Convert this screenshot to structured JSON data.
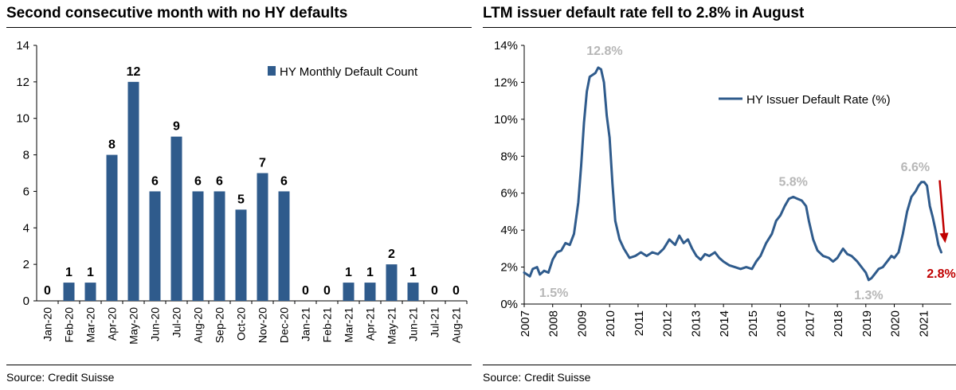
{
  "colors": {
    "series": "#2f5b8c",
    "annotation": "#b7b7b7",
    "highlight": "#c00000"
  },
  "left": {
    "title": "Second consecutive month with no HY defaults",
    "source": "Source: Credit Suisse",
    "chart_data": {
      "type": "bar",
      "categories": [
        "Jan-20",
        "Feb-20",
        "Mar-20",
        "Apr-20",
        "May-20",
        "Jun-20",
        "Jul-20",
        "Aug-20",
        "Sep-20",
        "Oct-20",
        "Nov-20",
        "Dec-20",
        "Jan-21",
        "Feb-21",
        "Mar-21",
        "Apr-21",
        "May-21",
        "Jun-21",
        "Jul-21",
        "Aug-21"
      ],
      "series": [
        {
          "name": "HY Monthly Default Count",
          "values": [
            0,
            1,
            1,
            8,
            12,
            6,
            9,
            6,
            6,
            5,
            7,
            6,
            0,
            0,
            1,
            1,
            2,
            1,
            0,
            0
          ]
        }
      ],
      "yticks": [
        "0",
        "2",
        "4",
        "6",
        "8",
        "10",
        "12",
        "14"
      ],
      "ylim": [
        0,
        14
      ],
      "legend_position": "top-right",
      "data_labels": true
    }
  },
  "right": {
    "title": "LTM issuer default rate fell to 2.8% in August",
    "source": "Source: Credit Suisse",
    "chart_data": {
      "type": "line",
      "series": [
        {
          "name": "HY Issuer Default Rate (%)",
          "x": [
            2007.0,
            2007.1,
            2007.2,
            2007.3,
            2007.45,
            2007.55,
            2007.7,
            2007.85,
            2008.0,
            2008.15,
            2008.3,
            2008.45,
            2008.6,
            2008.75,
            2008.9,
            2009.0,
            2009.1,
            2009.2,
            2009.3,
            2009.4,
            2009.5,
            2009.6,
            2009.7,
            2009.8,
            2009.9,
            2010.0,
            2010.1,
            2010.2,
            2010.35,
            2010.5,
            2010.7,
            2010.9,
            2011.1,
            2011.3,
            2011.5,
            2011.7,
            2011.9,
            2012.1,
            2012.3,
            2012.45,
            2012.6,
            2012.75,
            2012.9,
            2013.05,
            2013.2,
            2013.35,
            2013.5,
            2013.7,
            2013.85,
            2014.0,
            2014.2,
            2014.4,
            2014.6,
            2014.8,
            2015.0,
            2015.15,
            2015.3,
            2015.5,
            2015.7,
            2015.85,
            2016.0,
            2016.15,
            2016.3,
            2016.45,
            2016.6,
            2016.75,
            2016.9,
            2017.0,
            2017.15,
            2017.3,
            2017.5,
            2017.7,
            2017.85,
            2018.0,
            2018.2,
            2018.35,
            2018.5,
            2018.7,
            2018.9,
            2019.0,
            2019.1,
            2019.2,
            2019.3,
            2019.45,
            2019.6,
            2019.75,
            2019.9,
            2020.0,
            2020.15,
            2020.3,
            2020.45,
            2020.6,
            2020.75,
            2020.85,
            2020.95,
            2021.05,
            2021.15,
            2021.25,
            2021.35,
            2021.45,
            2021.55,
            2021.65
          ],
          "y": [
            1.7,
            1.6,
            1.5,
            1.9,
            2.0,
            1.6,
            1.8,
            1.7,
            2.4,
            2.8,
            2.9,
            3.3,
            3.2,
            3.8,
            5.5,
            7.5,
            9.8,
            11.5,
            12.3,
            12.4,
            12.5,
            12.8,
            12.7,
            12.0,
            10.2,
            9.0,
            6.5,
            4.5,
            3.5,
            3.0,
            2.5,
            2.6,
            2.8,
            2.6,
            2.8,
            2.7,
            3.0,
            3.5,
            3.2,
            3.7,
            3.3,
            3.5,
            3.0,
            2.6,
            2.4,
            2.7,
            2.6,
            2.8,
            2.5,
            2.3,
            2.1,
            2.0,
            1.9,
            2.0,
            1.9,
            2.3,
            2.6,
            3.3,
            3.8,
            4.5,
            4.8,
            5.3,
            5.7,
            5.8,
            5.7,
            5.6,
            5.3,
            4.5,
            3.5,
            2.9,
            2.6,
            2.5,
            2.3,
            2.5,
            3.0,
            2.7,
            2.6,
            2.3,
            1.9,
            1.7,
            1.3,
            1.4,
            1.6,
            1.9,
            2.0,
            2.3,
            2.6,
            2.5,
            2.8,
            3.8,
            5.0,
            5.8,
            6.1,
            6.4,
            6.6,
            6.6,
            6.4,
            5.3,
            4.7,
            4.0,
            3.2,
            2.8
          ]
        }
      ],
      "xticks": [
        "2007",
        "2008",
        "2009",
        "2010",
        "2011",
        "2012",
        "2013",
        "2014",
        "2015",
        "2016",
        "2017",
        "2018",
        "2019",
        "2020",
        "2021"
      ],
      "yticks": [
        "0%",
        "2%",
        "4%",
        "6%",
        "8%",
        "10%",
        "12%",
        "14%"
      ],
      "ylim": [
        0,
        14
      ],
      "xlim": [
        2007,
        2022
      ],
      "legend_position": "top-right",
      "annotations": [
        {
          "text": "1.5%",
          "x": 2007.2,
          "y": 1.5,
          "color": "gray"
        },
        {
          "text": "12.8%",
          "x": 2009.6,
          "y": 12.8,
          "color": "gray"
        },
        {
          "text": "5.8%",
          "x": 2016.45,
          "y": 5.8,
          "color": "gray"
        },
        {
          "text": "1.3%",
          "x": 2019.1,
          "y": 1.3,
          "color": "gray"
        },
        {
          "text": "6.6%",
          "x": 2020.85,
          "y": 6.6,
          "color": "gray"
        },
        {
          "text": "2.8%",
          "x": 2021.65,
          "y": 2.8,
          "color": "red"
        }
      ]
    }
  }
}
